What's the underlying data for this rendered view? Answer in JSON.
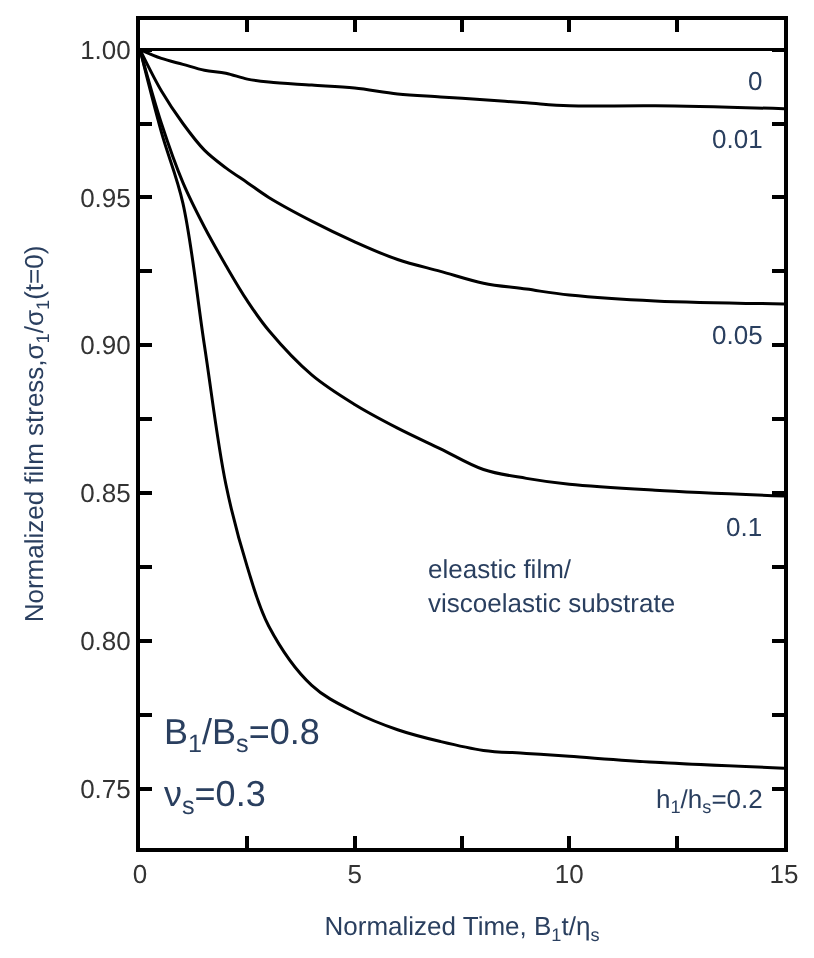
{
  "chart_data": {
    "type": "line",
    "xlabel": "Normalized Time, B$_{1}$t/η$_{s}$",
    "ylabel": "Normalized film stress,σ$_{1}$/σ$_{1}$(t=0)",
    "x": [
      0,
      0.5,
      1,
      1.5,
      2,
      2.5,
      3,
      4,
      5,
      6,
      7,
      8,
      9,
      10,
      12,
      15
    ],
    "series": [
      {
        "name": "0",
        "color": "#000000",
        "values": [
          1,
          1,
          1,
          1,
          1,
          1,
          1,
          1,
          1,
          1,
          1,
          1,
          1,
          1,
          1,
          1
        ]
      },
      {
        "name": "0.01",
        "color": "#000000",
        "values": [
          1,
          0.997,
          0.995,
          0.993,
          0.992,
          0.99,
          0.989,
          0.988,
          0.987,
          0.985,
          0.984,
          0.983,
          0.982,
          0.981,
          0.981,
          0.98
        ]
      },
      {
        "name": "0.05",
        "color": "#000000",
        "values": [
          1,
          0.986,
          0.975,
          0.966,
          0.96,
          0.955,
          0.95,
          0.942,
          0.935,
          0.929,
          0.925,
          0.921,
          0.919,
          0.917,
          0.915,
          0.914
        ]
      },
      {
        "name": "0.1",
        "color": "#000000",
        "values": [
          1,
          0.975,
          0.955,
          0.94,
          0.927,
          0.915,
          0.905,
          0.89,
          0.88,
          0.872,
          0.865,
          0.858,
          0.855,
          0.853,
          0.851,
          0.849
        ]
      },
      {
        "name": "h$_{1}$/h$_{s}$=0.2",
        "color": "#000000",
        "values": [
          1,
          0.972,
          0.948,
          0.9,
          0.853,
          0.825,
          0.805,
          0.785,
          0.776,
          0.77,
          0.766,
          0.763,
          0.762,
          0.761,
          0.759,
          0.757
        ]
      }
    ],
    "xlim": [
      0,
      15
    ],
    "ylim": [
      0.73,
      1.01
    ],
    "xticks": [
      0,
      {
        "value": 2.5,
        "label": null
      },
      5,
      {
        "value": 7.5,
        "label": null
      },
      10,
      {
        "value": 12.5,
        "label": null
      },
      15
    ],
    "yticks": [
      {
        "value": 0.75,
        "label": "0.75"
      },
      {
        "value": 0.775,
        "label": null
      },
      {
        "value": 0.8,
        "label": "0.80"
      },
      {
        "value": 0.825,
        "label": null
      },
      {
        "value": 0.85,
        "label": "0.85"
      },
      {
        "value": 0.875,
        "label": null
      },
      {
        "value": 0.9,
        "label": "0.90"
      },
      {
        "value": 0.925,
        "label": null
      },
      {
        "value": 0.95,
        "label": "0.95"
      },
      {
        "value": 0.975,
        "label": null
      },
      {
        "value": 1.0,
        "label": "1.00"
      }
    ],
    "annotations": [
      "eleastic film/\nviscoelastic substrate",
      "B$_{1}$/B$_{s}$=0.8",
      "ν$_{s}$=0.3"
    ],
    "legend": "right",
    "marker": "none",
    "line_style": "solid"
  }
}
